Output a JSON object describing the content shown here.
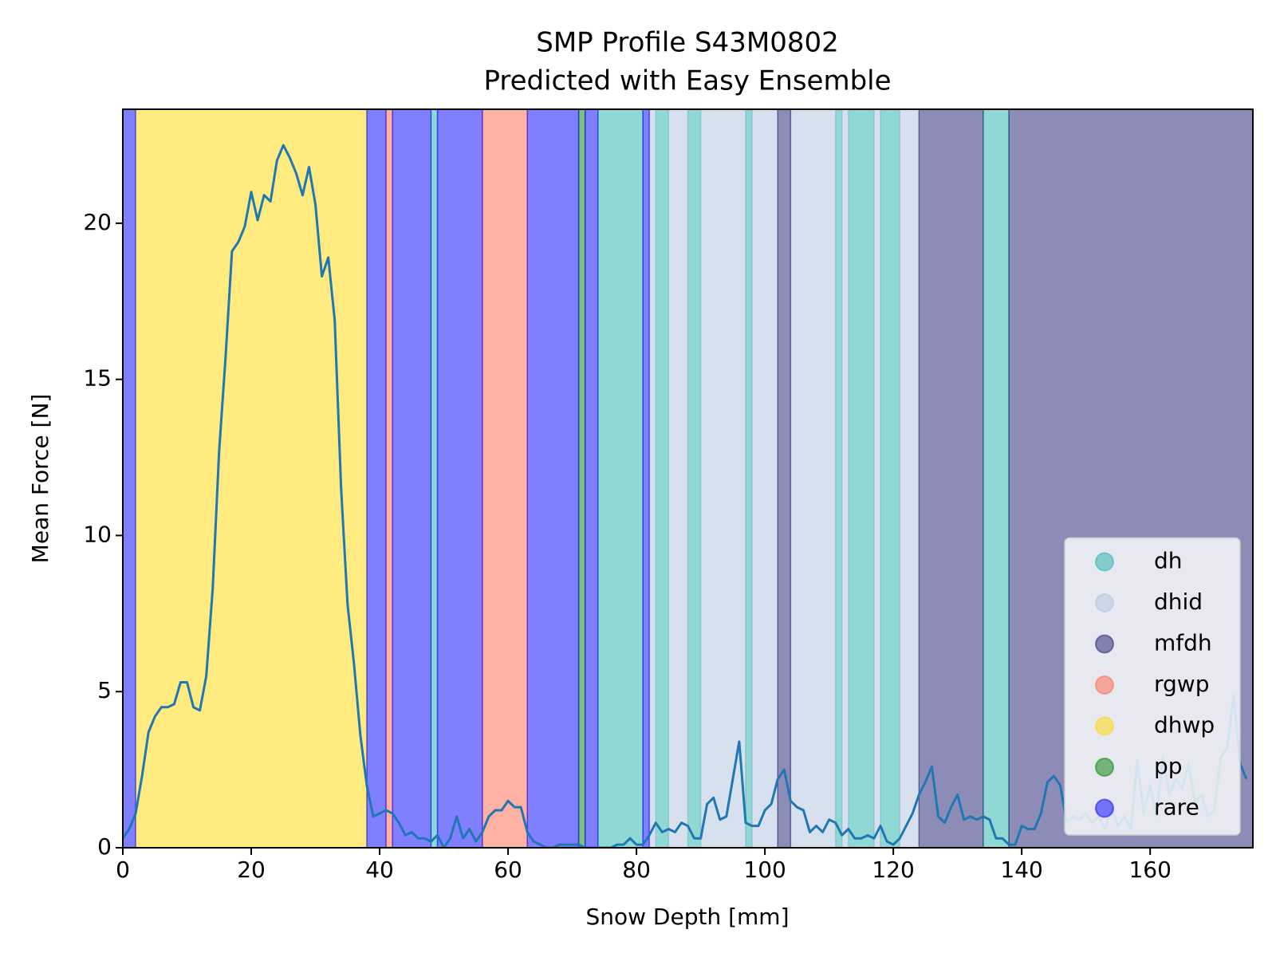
{
  "chart_data": {
    "type": "line",
    "title": "SMP Profile S43M0802",
    "subtitle": "Predicted with Easy Ensemble",
    "x_label": "Snow Depth [mm]",
    "y_label": "Mean Force [N]",
    "xlim": [
      0,
      176
    ],
    "ylim": [
      0,
      23.65
    ],
    "xticks": [
      0,
      20,
      40,
      60,
      80,
      100,
      120,
      140,
      160
    ],
    "yticks": [
      0,
      5,
      10,
      15,
      20
    ],
    "legend": "lower right",
    "bands": [
      {
        "name": "dh",
        "color": "#20b2aa",
        "spans": [
          [
            48,
            49
          ],
          [
            74,
            81
          ],
          [
            83,
            85
          ],
          [
            88,
            90
          ],
          [
            97,
            98
          ],
          [
            111,
            112
          ],
          [
            113,
            117
          ],
          [
            118,
            121
          ],
          [
            134,
            138
          ]
        ]
      },
      {
        "name": "dhid",
        "color": "#b0c4de",
        "spans": [
          [
            82,
            83
          ],
          [
            85,
            88
          ],
          [
            90,
            97
          ],
          [
            98,
            102
          ],
          [
            104,
            111
          ],
          [
            112,
            113
          ],
          [
            117,
            118
          ],
          [
            121,
            124
          ]
        ]
      },
      {
        "name": "mfdh",
        "color": "#191970",
        "spans": [
          [
            102,
            104
          ],
          [
            124,
            134
          ],
          [
            138,
            176
          ]
        ]
      },
      {
        "name": "rgwp",
        "color": "#ff6347",
        "spans": [
          [
            41,
            42
          ],
          [
            56,
            63
          ]
        ]
      },
      {
        "name": "dhwp",
        "color": "#ffd700",
        "spans": [
          [
            2,
            38
          ]
        ]
      },
      {
        "name": "pp",
        "color": "#008000",
        "spans": [
          [
            71,
            72
          ]
        ]
      },
      {
        "name": "rare",
        "color": "#0000ff",
        "spans": [
          [
            0,
            2
          ],
          [
            38,
            41
          ],
          [
            42,
            48
          ],
          [
            49,
            56
          ],
          [
            63,
            71
          ],
          [
            72,
            74
          ],
          [
            81,
            82
          ]
        ]
      }
    ],
    "line": {
      "color": "#1f77b4",
      "x": [
        0,
        1,
        2,
        3,
        4,
        5,
        6,
        7,
        8,
        9,
        10,
        11,
        12,
        13,
        14,
        15,
        16,
        17,
        18,
        19,
        20,
        21,
        22,
        23,
        24,
        25,
        26,
        27,
        28,
        29,
        30,
        31,
        32,
        33,
        34,
        35,
        36,
        37,
        38,
        39,
        40,
        41,
        42,
        43,
        44,
        45,
        46,
        47,
        48,
        49,
        50,
        51,
        52,
        53,
        54,
        55,
        56,
        57,
        58,
        59,
        60,
        61,
        62,
        63,
        64,
        65,
        66,
        67,
        68,
        69,
        70,
        71,
        72,
        73,
        74,
        75,
        76,
        77,
        78,
        79,
        80,
        81,
        82,
        83,
        84,
        85,
        86,
        87,
        88,
        89,
        90,
        91,
        92,
        93,
        94,
        95,
        96,
        97,
        98,
        99,
        100,
        101,
        102,
        103,
        104,
        105,
        106,
        107,
        108,
        109,
        110,
        111,
        112,
        113,
        114,
        115,
        116,
        117,
        118,
        119,
        120,
        121,
        122,
        123,
        124,
        125,
        126,
        127,
        128,
        129,
        130,
        131,
        132,
        133,
        134,
        135,
        136,
        137,
        138,
        139,
        140,
        141,
        142,
        143,
        144,
        145,
        146,
        147,
        148,
        149,
        150,
        151,
        152,
        153,
        154,
        155,
        156,
        157,
        158,
        159,
        160,
        161,
        162,
        163,
        164,
        165,
        166,
        167,
        168,
        169,
        170,
        171,
        172,
        173,
        174,
        175
      ],
      "values": [
        0.3,
        0.6,
        1.1,
        2.3,
        3.7,
        4.2,
        4.5,
        4.5,
        4.6,
        5.3,
        5.3,
        4.5,
        4.4,
        5.5,
        8.3,
        12.7,
        15.7,
        19.1,
        19.4,
        19.9,
        21.0,
        20.1,
        20.9,
        20.7,
        22.0,
        22.5,
        22.1,
        21.6,
        20.9,
        21.8,
        20.6,
        18.3,
        18.9,
        16.9,
        11.5,
        7.8,
        5.9,
        3.6,
        2.0,
        1.0,
        1.1,
        1.2,
        1.1,
        0.8,
        0.4,
        0.5,
        0.3,
        0.3,
        0.2,
        0.4,
        0.0,
        0.3,
        1.0,
        0.3,
        0.6,
        0.2,
        0.5,
        1.0,
        1.2,
        1.2,
        1.5,
        1.3,
        1.3,
        0.5,
        0.2,
        0.1,
        0.0,
        0.0,
        0.1,
        0.1,
        0.1,
        0.1,
        0.0,
        0.0,
        0.0,
        0.0,
        0.0,
        0.1,
        0.1,
        0.3,
        0.1,
        0.1,
        0.4,
        0.8,
        0.5,
        0.6,
        0.5,
        0.8,
        0.7,
        0.3,
        0.3,
        1.4,
        1.6,
        0.9,
        1.0,
        2.2,
        3.4,
        0.8,
        0.7,
        0.7,
        1.2,
        1.4,
        2.2,
        2.5,
        1.5,
        1.3,
        1.2,
        0.5,
        0.7,
        0.5,
        0.9,
        0.8,
        0.4,
        0.6,
        0.3,
        0.3,
        0.4,
        0.3,
        0.7,
        0.2,
        0.1,
        0.3,
        0.7,
        1.1,
        1.7,
        2.1,
        2.6,
        1.0,
        0.8,
        1.3,
        1.7,
        0.9,
        1.0,
        0.9,
        1.0,
        0.9,
        0.3,
        0.3,
        0.1,
        0.1,
        0.7,
        0.6,
        0.6,
        1.1,
        2.1,
        2.3,
        2.0,
        0.8,
        1.0,
        0.9,
        1.1,
        0.8,
        1.0,
        0.6,
        1.3,
        0.7,
        1.0,
        0.6,
        2.8,
        1.1,
        2.0,
        1.0,
        2.9,
        1.7,
        2.2,
        1.9,
        2.7,
        1.4,
        1.7,
        1.0,
        1.2,
        2.9,
        3.2,
        4.9,
        2.7,
        2.2
      ]
    }
  }
}
